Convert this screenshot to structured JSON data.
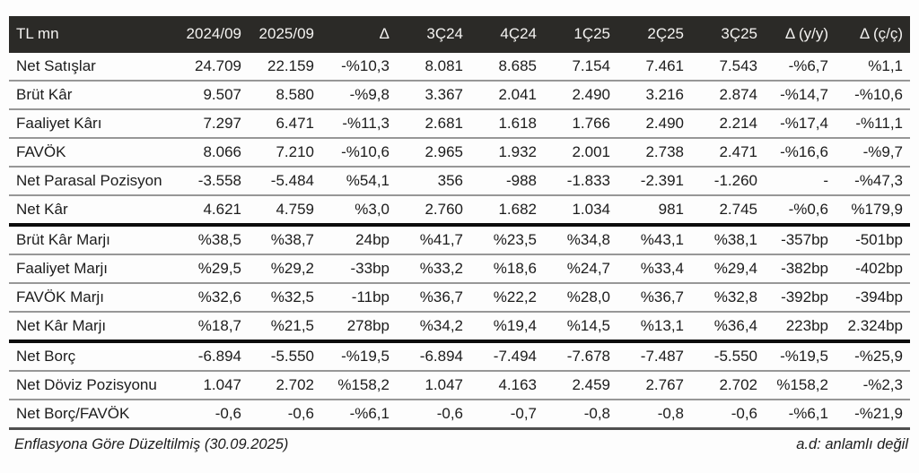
{
  "colors": {
    "header_bg": "#2b2a27",
    "header_text": "#f4f3f1",
    "body_text": "#1c1c1c",
    "row_separator": "#979797",
    "section_separator": "#0c0c0c",
    "footer_separator": "#4f4f4f",
    "page_bg": "#fdfdfd"
  },
  "table": {
    "columns": [
      "TL mn",
      "2024/09",
      "2025/09",
      "Δ",
      "3Ç24",
      "4Ç24",
      "1Ç25",
      "2Ç25",
      "3Ç25",
      "Δ (y/y)",
      "Δ (ç/ç)"
    ],
    "rows": [
      {
        "label": "Net Satışlar",
        "values": [
          "24.709",
          "22.159",
          "-%10,3",
          "8.081",
          "8.685",
          "7.154",
          "7.461",
          "7.543",
          "-%6,7",
          "%1,1"
        ],
        "section_end": false
      },
      {
        "label": "Brüt Kâr",
        "values": [
          "9.507",
          "8.580",
          "-%9,8",
          "3.367",
          "2.041",
          "2.490",
          "3.216",
          "2.874",
          "-%14,7",
          "-%10,6"
        ],
        "section_end": false
      },
      {
        "label": "Faaliyet Kârı",
        "values": [
          "7.297",
          "6.471",
          "-%11,3",
          "2.681",
          "1.618",
          "1.766",
          "2.490",
          "2.214",
          "-%17,4",
          "-%11,1"
        ],
        "section_end": false
      },
      {
        "label": "FAVÖK",
        "values": [
          "8.066",
          "7.210",
          "-%10,6",
          "2.965",
          "1.932",
          "2.001",
          "2.738",
          "2.471",
          "-%16,6",
          "-%9,7"
        ],
        "section_end": false
      },
      {
        "label": "Net Parasal Pozisyon",
        "values": [
          "-3.558",
          "-5.484",
          "%54,1",
          "356",
          "-988",
          "-1.833",
          "-2.391",
          "-1.260",
          "-",
          "-%47,3"
        ],
        "section_end": false
      },
      {
        "label": "Net Kâr",
        "values": [
          "4.621",
          "4.759",
          "%3,0",
          "2.760",
          "1.682",
          "1.034",
          "981",
          "2.745",
          "-%0,6",
          "%179,9"
        ],
        "section_end": true
      },
      {
        "label": "Brüt Kâr Marjı",
        "values": [
          "%38,5",
          "%38,7",
          "24bp",
          "%41,7",
          "%23,5",
          "%34,8",
          "%43,1",
          "%38,1",
          "-357bp",
          "-501bp"
        ],
        "section_end": false
      },
      {
        "label": "Faaliyet Marjı",
        "values": [
          "%29,5",
          "%29,2",
          "-33bp",
          "%33,2",
          "%18,6",
          "%24,7",
          "%33,4",
          "%29,4",
          "-382bp",
          "-402bp"
        ],
        "section_end": false
      },
      {
        "label": "FAVÖK Marjı",
        "values": [
          "%32,6",
          "%32,5",
          "-11bp",
          "%36,7",
          "%22,2",
          "%28,0",
          "%36,7",
          "%32,8",
          "-392bp",
          "-394bp"
        ],
        "section_end": false
      },
      {
        "label": "Net Kâr Marjı",
        "values": [
          "%18,7",
          "%21,5",
          "278bp",
          "%34,2",
          "%19,4",
          "%14,5",
          "%13,1",
          "%36,4",
          "223bp",
          "2.324bp"
        ],
        "section_end": true
      },
      {
        "label": "Net Borç",
        "values": [
          "-6.894",
          "-5.550",
          "-%19,5",
          "-6.894",
          "-7.494",
          "-7.678",
          "-7.487",
          "-5.550",
          "-%19,5",
          "-%25,9"
        ],
        "section_end": false
      },
      {
        "label": "Net Döviz Pozisyonu",
        "values": [
          "1.047",
          "2.702",
          "%158,2",
          "1.047",
          "4.163",
          "2.459",
          "2.767",
          "2.702",
          "%158,2",
          "-%2,3"
        ],
        "section_end": false
      },
      {
        "label": "Net Borç/FAVÖK",
        "values": [
          "-0,6",
          "-0,6",
          "-%6,1",
          "-0,6",
          "-0,7",
          "-0,8",
          "-0,8",
          "-0,6",
          "-%6,1",
          "-%21,9"
        ],
        "section_end": false
      }
    ]
  },
  "footer": {
    "left_note": "Enflasyona Göre Düzeltilmiş (30.09.2025)",
    "right_note": "a.d: anlamlı değil"
  }
}
